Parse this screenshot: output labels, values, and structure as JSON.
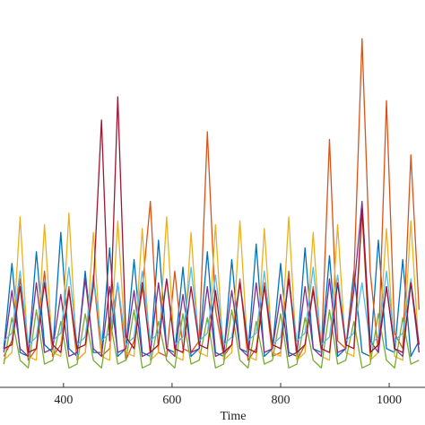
{
  "chart_data": {
    "type": "line",
    "x_label": "Time",
    "x": [
      290,
      305,
      320,
      335,
      350,
      365,
      380,
      395,
      410,
      425,
      440,
      455,
      470,
      485,
      500,
      515,
      530,
      545,
      560,
      575,
      590,
      605,
      620,
      635,
      650,
      665,
      680,
      695,
      710,
      725,
      740,
      755,
      770,
      785,
      800,
      815,
      830,
      845,
      860,
      875,
      890,
      905,
      920,
      935,
      950,
      965,
      980,
      995,
      1010,
      1025,
      1040,
      1055
    ],
    "xlim": [
      283,
      1066
    ],
    "xticks": [
      400,
      600,
      800,
      1000
    ],
    "ylim": [
      0,
      100
    ],
    "series": [
      {
        "color": "#0072BD",
        "values": [
          10,
          32,
          9,
          8,
          35,
          11,
          9,
          40,
          10,
          8,
          30,
          9,
          9,
          36,
          8,
          10,
          33,
          9,
          8,
          38,
          10,
          9,
          31,
          8,
          10,
          35,
          9,
          8,
          33,
          10,
          9,
          37,
          8,
          10,
          32,
          9,
          8,
          36,
          10,
          9,
          34,
          8,
          10,
          30,
          9,
          8,
          38,
          10,
          9,
          33,
          8,
          12
        ]
      },
      {
        "color": "#D95319",
        "values": [
          8,
          12,
          28,
          7,
          10,
          30,
          8,
          11,
          26,
          7,
          9,
          29,
          8,
          10,
          27,
          7,
          12,
          25,
          48,
          9,
          8,
          30,
          10,
          9,
          12,
          66,
          20,
          8,
          11,
          28,
          7,
          10,
          27,
          8,
          9,
          30,
          7,
          11,
          26,
          9,
          64,
          12,
          10,
          28,
          90,
          30,
          9,
          74,
          14,
          10,
          60,
          20
        ]
      },
      {
        "color": "#EDB120",
        "values": [
          7,
          9,
          44,
          8,
          7,
          42,
          9,
          8,
          45,
          7,
          9,
          40,
          8,
          7,
          43,
          9,
          8,
          41,
          7,
          9,
          44,
          8,
          7,
          40,
          9,
          8,
          42,
          7,
          9,
          43,
          8,
          7,
          41,
          9,
          8,
          44,
          7,
          9,
          40,
          8,
          7,
          42,
          9,
          8,
          45,
          7,
          9,
          41,
          8,
          7,
          43,
          9
        ]
      },
      {
        "color": "#7E2F8E",
        "values": [
          9,
          25,
          10,
          8,
          27,
          9,
          10,
          24,
          8,
          9,
          28,
          10,
          8,
          26,
          9,
          10,
          25,
          8,
          9,
          27,
          10,
          8,
          24,
          9,
          10,
          26,
          8,
          9,
          25,
          10,
          8,
          27,
          9,
          10,
          24,
          8,
          9,
          26,
          10,
          8,
          28,
          9,
          10,
          25,
          48,
          12,
          9,
          26,
          10,
          8,
          27,
          9
        ]
      },
      {
        "color": "#77AC30",
        "values": [
          6,
          18,
          7,
          5,
          20,
          6,
          7,
          17,
          5,
          6,
          19,
          7,
          5,
          18,
          6,
          7,
          20,
          5,
          6,
          17,
          7,
          5,
          19,
          6,
          7,
          18,
          5,
          6,
          20,
          7,
          5,
          17,
          6,
          7,
          19,
          5,
          6,
          18,
          7,
          5,
          20,
          6,
          7,
          17,
          5,
          6,
          19,
          7,
          5,
          18,
          6,
          7
        ]
      },
      {
        "color": "#4DBEEE",
        "values": [
          12,
          14,
          30,
          11,
          13,
          28,
          12,
          14,
          31,
          11,
          13,
          29,
          12,
          14,
          27,
          11,
          13,
          30,
          12,
          14,
          28,
          11,
          13,
          31,
          12,
          14,
          29,
          11,
          13,
          27,
          12,
          14,
          30,
          11,
          13,
          28,
          12,
          14,
          31,
          11,
          13,
          29,
          12,
          14,
          27,
          11,
          13,
          30,
          12,
          14,
          28,
          11
        ]
      },
      {
        "color": "#A2142F",
        "values": [
          10,
          11,
          26,
          9,
          10,
          27,
          11,
          9,
          25,
          10,
          11,
          26,
          69,
          12,
          75,
          13,
          10,
          27,
          9,
          11,
          28,
          10,
          9,
          26,
          11,
          10,
          25,
          9,
          11,
          27,
          10,
          9,
          26,
          11,
          10,
          28,
          9,
          11,
          25,
          10,
          9,
          27,
          11,
          10,
          46,
          9,
          11,
          26,
          10,
          9,
          27,
          11
        ]
      }
    ]
  }
}
